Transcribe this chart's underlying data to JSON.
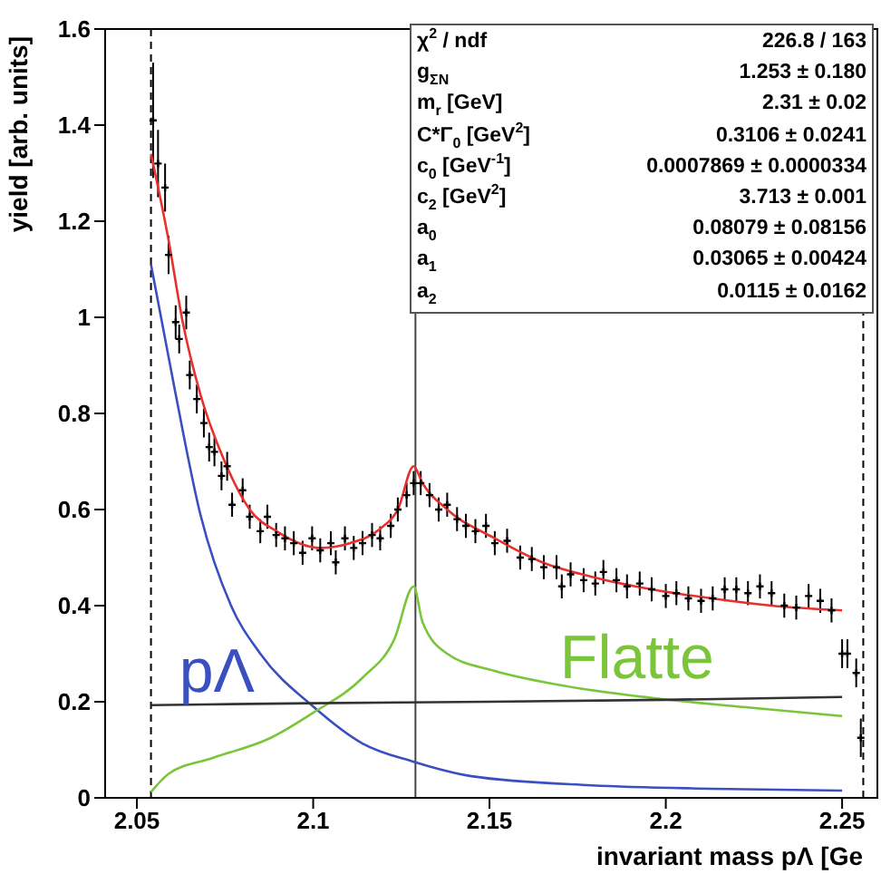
{
  "chart_data": {
    "type": "line",
    "xlabel": "invariant mass pΛ [Ge",
    "ylabel": "yield [arb. units]",
    "xlim": [
      2.041,
      2.26
    ],
    "xticks": [
      2.05,
      2.1,
      2.15,
      2.2,
      2.25
    ],
    "ylim": [
      0,
      1.6
    ],
    "yticks": [
      0,
      0.2,
      0.4,
      0.6,
      0.8,
      1,
      1.2,
      1.4,
      1.6
    ],
    "grid": false,
    "legend": false,
    "ref_lines": [
      {
        "axis": "x",
        "value": 2.054,
        "line_style": "dashed",
        "color": "#000000"
      },
      {
        "axis": "x",
        "value": 2.256,
        "line_style": "dashed",
        "color": "#000000"
      },
      {
        "axis": "x",
        "value": 2.129,
        "line_style": "solid",
        "color": "#444444"
      }
    ],
    "series": [
      {
        "type": "scatter",
        "marker": "cross",
        "color": "#000000",
        "x": [
          2.0546,
          2.056,
          2.058,
          2.059,
          2.061,
          2.062,
          2.064,
          2.065,
          2.067,
          2.069,
          2.0705,
          2.072,
          2.074,
          2.0756,
          2.077,
          2.08,
          2.082,
          2.085,
          2.087,
          2.0895,
          2.092,
          2.0945,
          2.097,
          2.0997,
          2.102,
          2.105,
          2.1064,
          2.109,
          2.1115,
          2.114,
          2.1167,
          2.119,
          2.122,
          2.124,
          2.1265,
          2.1285,
          2.1305,
          2.133,
          2.1356,
          2.138,
          2.1408,
          2.1433,
          2.146,
          2.149,
          2.1515,
          2.155,
          2.1587,
          2.162,
          2.1654,
          2.169,
          2.1705,
          2.173,
          2.1767,
          2.18,
          2.1823,
          2.186,
          2.189,
          2.1926,
          2.196,
          2.2,
          2.203,
          2.2064,
          2.21,
          2.2133,
          2.2167,
          2.22,
          2.2233,
          2.2267,
          2.23,
          2.2336,
          2.237,
          2.2405,
          2.2438,
          2.247,
          2.25,
          2.2515,
          2.254,
          2.2553
        ],
        "values": [
          1.41,
          1.32,
          1.27,
          1.13,
          0.99,
          0.955,
          1.01,
          0.88,
          0.83,
          0.78,
          0.73,
          0.72,
          0.67,
          0.69,
          0.61,
          0.64,
          0.585,
          0.555,
          0.585,
          0.547,
          0.54,
          0.53,
          0.51,
          0.54,
          0.515,
          0.53,
          0.49,
          0.54,
          0.52,
          0.53,
          0.547,
          0.54,
          0.566,
          0.6,
          0.63,
          0.655,
          0.655,
          0.63,
          0.6,
          0.61,
          0.58,
          0.566,
          0.555,
          0.566,
          0.53,
          0.535,
          0.5,
          0.497,
          0.48,
          0.48,
          0.44,
          0.465,
          0.453,
          0.446,
          0.47,
          0.453,
          0.44,
          0.446,
          0.434,
          0.42,
          0.426,
          0.415,
          0.41,
          0.415,
          0.434,
          0.434,
          0.426,
          0.44,
          0.426,
          0.4,
          0.396,
          0.42,
          0.41,
          0.39,
          0.3,
          0.3,
          0.26,
          0.125
        ],
        "errors": [
          0.12,
          0.07,
          0.05,
          0.04,
          0.035,
          0.03,
          0.035,
          0.03,
          0.03,
          0.03,
          0.03,
          0.03,
          0.03,
          0.03,
          0.025,
          0.025,
          0.025,
          0.025,
          0.025,
          0.025,
          0.025,
          0.025,
          0.025,
          0.025,
          0.025,
          0.025,
          0.025,
          0.025,
          0.025,
          0.025,
          0.025,
          0.025,
          0.025,
          0.025,
          0.025,
          0.025,
          0.025,
          0.025,
          0.025,
          0.025,
          0.025,
          0.025,
          0.025,
          0.025,
          0.025,
          0.025,
          0.025,
          0.025,
          0.025,
          0.025,
          0.025,
          0.025,
          0.025,
          0.025,
          0.025,
          0.025,
          0.025,
          0.025,
          0.025,
          0.025,
          0.025,
          0.025,
          0.025,
          0.025,
          0.025,
          0.025,
          0.025,
          0.025,
          0.025,
          0.025,
          0.025,
          0.025,
          0.025,
          0.025,
          0.03,
          0.03,
          0.03,
          0.04
        ]
      },
      {
        "marker": "none",
        "color": "#e8312d",
        "x": [
          2.054,
          2.059,
          2.063,
          2.068,
          2.0746,
          2.082,
          2.09,
          2.102,
          2.1105,
          2.119,
          2.124,
          2.1285,
          2.131,
          2.138,
          2.1515,
          2.165,
          2.179,
          2.196,
          2.213,
          2.23,
          2.25
        ],
        "values": [
          1.34,
          1.16,
          0.99,
          0.84,
          0.705,
          0.6,
          0.553,
          0.52,
          0.53,
          0.56,
          0.6,
          0.69,
          0.655,
          0.6,
          0.54,
          0.49,
          0.46,
          0.434,
          0.415,
          0.4,
          0.39
        ]
      },
      {
        "marker": "none",
        "name": "pΛ",
        "color": "#3a4fc0",
        "x": [
          2.054,
          2.061,
          2.068,
          2.0767,
          2.085,
          2.1,
          2.114,
          2.1285,
          2.1449,
          2.179,
          2.213,
          2.25
        ],
        "values": [
          1.11,
          0.84,
          0.59,
          0.4,
          0.3,
          0.19,
          0.113,
          0.075,
          0.045,
          0.026,
          0.019,
          0.015
        ]
      },
      {
        "marker": "none",
        "name": "Flatte",
        "color": "#7ac53a",
        "x": [
          2.054,
          2.059,
          2.0715,
          2.088,
          2.1,
          2.114,
          2.123,
          2.1285,
          2.131,
          2.138,
          2.1515,
          2.1705,
          2.196,
          2.2218,
          2.25
        ],
        "values": [
          0.012,
          0.05,
          0.083,
          0.125,
          0.177,
          0.25,
          0.33,
          0.44,
          0.366,
          0.3,
          0.264,
          0.234,
          0.208,
          0.189,
          0.17
        ]
      },
      {
        "marker": "none",
        "color": "#333333",
        "x": [
          2.054,
          2.1,
          2.15,
          2.2,
          2.25
        ],
        "values": [
          0.193,
          0.197,
          0.2,
          0.204,
          0.21
        ]
      }
    ],
    "annotations": [
      "χ$^{2}$ / ndf",
      "226.8 / 163",
      "g$_{ΣN}$",
      "1.253 ± 0.180",
      "m$_{r}$ [GeV]",
      "2.31 ± 0.02",
      "C*Γ$_{0}$ [GeV$^{2}$]",
      "0.3106 ± 0.0241",
      "c$_{0}$ [GeV$^{-1}$]",
      "0.0007869 ± 0.0000334",
      "c$_{2}$ [GeV$^{2}$]",
      "3.713 ± 0.001",
      "a$_{0}$",
      "0.08079 ± 0.08156",
      "a$_{1}$",
      "0.03065 ± 0.00424",
      "a$_{2}$",
      "0.0115 ± 0.0162"
    ]
  }
}
